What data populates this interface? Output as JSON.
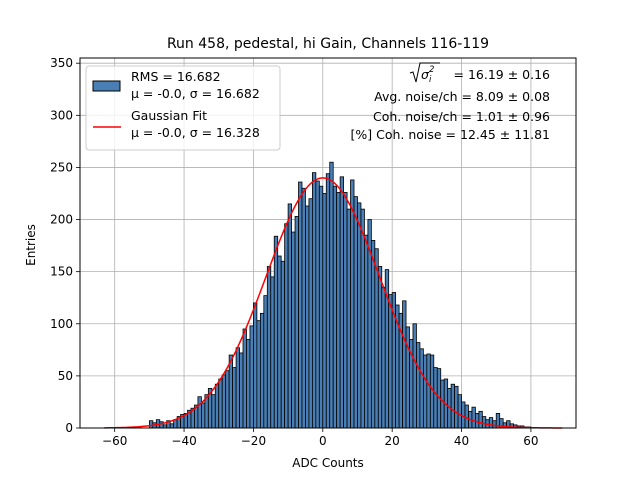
{
  "chart_data": {
    "type": "bar",
    "title": "Run 458, pedestal, hi Gain, Channels 116-119",
    "xlabel": "ADC Counts",
    "ylabel": "Entries",
    "xlim": [
      -70,
      73
    ],
    "ylim": [
      0,
      355
    ],
    "xticks": [
      -60,
      -40,
      -20,
      0,
      20,
      40,
      60
    ],
    "yticks": [
      0,
      50,
      100,
      150,
      200,
      250,
      300,
      350
    ],
    "grid": true,
    "bin_width": 1,
    "histogram": {
      "name": "RMS = 16.682",
      "name_line2": "μ = -0.0, σ = 16.682",
      "color": "#4a7fb5",
      "edgecolor": "#000000",
      "bins": [
        [
          -50,
          7
        ],
        [
          -49,
          5
        ],
        [
          -48,
          8
        ],
        [
          -47,
          6
        ],
        [
          -46,
          3
        ],
        [
          -45,
          7
        ],
        [
          -44,
          4
        ],
        [
          -43,
          8
        ],
        [
          -42,
          11
        ],
        [
          -41,
          13
        ],
        [
          -40,
          14
        ],
        [
          -39,
          17
        ],
        [
          -38,
          19
        ],
        [
          -37,
          22
        ],
        [
          -36,
          30
        ],
        [
          -35,
          24
        ],
        [
          -34,
          32
        ],
        [
          -33,
          38
        ],
        [
          -32,
          32
        ],
        [
          -31,
          42
        ],
        [
          -30,
          47
        ],
        [
          -29,
          51
        ],
        [
          -28,
          55
        ],
        [
          -27,
          70
        ],
        [
          -26,
          58
        ],
        [
          -25,
          77
        ],
        [
          -24,
          72
        ],
        [
          -23,
          95
        ],
        [
          -22,
          85
        ],
        [
          -21,
          98
        ],
        [
          -20,
          120
        ],
        [
          -19,
          103
        ],
        [
          -18,
          110
        ],
        [
          -17,
          127
        ],
        [
          -16,
          155
        ],
        [
          -15,
          145
        ],
        [
          -14,
          184
        ],
        [
          -13,
          165
        ],
        [
          -12,
          160
        ],
        [
          -11,
          196
        ],
        [
          -10,
          215
        ],
        [
          -9,
          188
        ],
        [
          -8,
          203
        ],
        [
          -7,
          236
        ],
        [
          -6,
          230
        ],
        [
          -5,
          213
        ],
        [
          -4,
          220
        ],
        [
          -3,
          245
        ],
        [
          -2,
          237
        ],
        [
          -1,
          232
        ],
        [
          0,
          225
        ],
        [
          1,
          244
        ],
        [
          2,
          255
        ],
        [
          3,
          232
        ],
        [
          4,
          226
        ],
        [
          5,
          241
        ],
        [
          6,
          226
        ],
        [
          7,
          210
        ],
        [
          8,
          238
        ],
        [
          9,
          222
        ],
        [
          10,
          216
        ],
        [
          11,
          210
        ],
        [
          12,
          185
        ],
        [
          13,
          200
        ],
        [
          14,
          180
        ],
        [
          15,
          172
        ],
        [
          16,
          155
        ],
        [
          17,
          135
        ],
        [
          18,
          152
        ],
        [
          19,
          128
        ],
        [
          20,
          130
        ],
        [
          21,
          118
        ],
        [
          22,
          110
        ],
        [
          23,
          122
        ],
        [
          24,
          97
        ],
        [
          25,
          85
        ],
        [
          26,
          100
        ],
        [
          27,
          82
        ],
        [
          28,
          76
        ],
        [
          29,
          70
        ],
        [
          30,
          71
        ],
        [
          31,
          70
        ],
        [
          32,
          58
        ],
        [
          33,
          57
        ],
        [
          34,
          46
        ],
        [
          35,
          47
        ],
        [
          36,
          38
        ],
        [
          37,
          42
        ],
        [
          38,
          40
        ],
        [
          39,
          32
        ],
        [
          40,
          25
        ],
        [
          41,
          22
        ],
        [
          42,
          16
        ],
        [
          43,
          20
        ],
        [
          44,
          14
        ],
        [
          45,
          16
        ],
        [
          46,
          11
        ],
        [
          47,
          8
        ],
        [
          48,
          10
        ],
        [
          49,
          7
        ],
        [
          50,
          14
        ],
        [
          51,
          9
        ],
        [
          52,
          5
        ],
        [
          53,
          7
        ],
        [
          54,
          4
        ],
        [
          55,
          3
        ],
        [
          56,
          2
        ],
        [
          57,
          2
        ],
        [
          58,
          1
        ],
        [
          59,
          1
        ]
      ]
    },
    "fit": {
      "name": "Gaussian Fit",
      "name_line2": "μ = -0.0, σ = 16.328",
      "color": "#ff0000",
      "mu": 0.0,
      "sigma": 16.328,
      "amplitude": 240,
      "x_range": [
        -63,
        69
      ]
    },
    "legend_position": "upper-left",
    "annotations": [
      "= 16.19 ± 0.16",
      "Avg. noise/ch = 8.09 ± 0.08",
      "Coh. noise/ch = 1.01 ± 0.96",
      "[%] Coh. noise = 12.45 ± 11.81"
    ],
    "annotation_position": "upper-right"
  }
}
